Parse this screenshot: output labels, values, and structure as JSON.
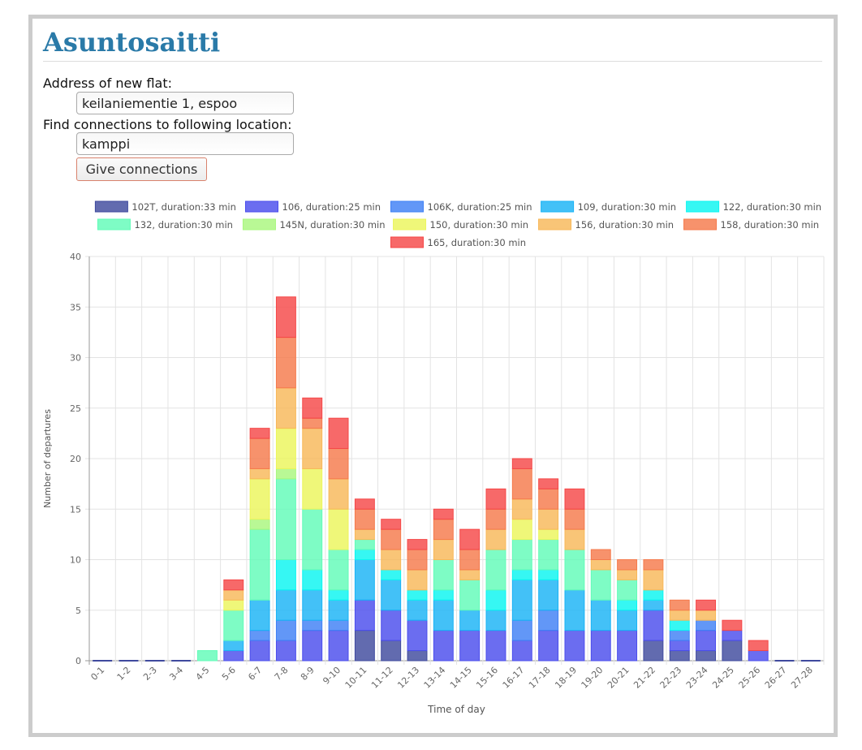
{
  "app": {
    "title": "Asuntosaitti"
  },
  "form": {
    "address_label": "Address of new flat:",
    "address_value": "keilaniementie 1, espoo",
    "destination_label": "Find connections to following location:",
    "destination_value": "kamppi",
    "submit_label": "Give connections"
  },
  "chart_data": {
    "type": "bar",
    "stacked": true,
    "xlabel": "Time of day",
    "ylabel": "Number of departures",
    "ylim": [
      0,
      40
    ],
    "yticks": [
      0,
      5,
      10,
      15,
      20,
      25,
      30,
      35,
      40
    ],
    "grid": true,
    "legend": "top",
    "categories": [
      "0-1",
      "1-2",
      "2-3",
      "3-4",
      "4-5",
      "5-6",
      "6-7",
      "7-8",
      "8-9",
      "9-10",
      "10-11",
      "11-12",
      "12-13",
      "13-14",
      "14-15",
      "15-16",
      "16-17",
      "17-18",
      "18-19",
      "19-20",
      "20-21",
      "21-22",
      "22-23",
      "23-24",
      "24-25",
      "25-26",
      "26-27",
      "27-28"
    ],
    "series": [
      {
        "name": "102T, duration:33 min",
        "color": "#3f4a9e",
        "values": [
          0,
          0,
          0,
          0,
          0,
          0,
          0,
          0,
          0,
          0,
          3,
          2,
          1,
          0,
          0,
          0,
          0,
          0,
          0,
          0,
          0,
          2,
          1,
          1,
          2,
          0,
          0,
          0
        ]
      },
      {
        "name": "106, duration:25 min",
        "color": "#4b4ded",
        "values": [
          0,
          0,
          0,
          0,
          0,
          1,
          2,
          2,
          3,
          3,
          3,
          3,
          3,
          3,
          3,
          3,
          2,
          3,
          3,
          3,
          3,
          3,
          1,
          2,
          1,
          1,
          0,
          0
        ]
      },
      {
        "name": "106K, duration:25 min",
        "color": "#3f80f5",
        "values": [
          0,
          0,
          0,
          0,
          0,
          0,
          1,
          2,
          1,
          1,
          0,
          0,
          0,
          0,
          0,
          0,
          2,
          2,
          0,
          0,
          0,
          0,
          1,
          1,
          0,
          0,
          0,
          0
        ]
      },
      {
        "name": "109, duration:30 min",
        "color": "#1ab3f5",
        "values": [
          0,
          0,
          0,
          0,
          0,
          1,
          3,
          3,
          3,
          2,
          4,
          3,
          2,
          3,
          2,
          2,
          4,
          3,
          4,
          3,
          2,
          1,
          0,
          0,
          0,
          0,
          0,
          0
        ]
      },
      {
        "name": "122, duration:30 min",
        "color": "#0af5f0",
        "values": [
          0,
          0,
          0,
          0,
          0,
          0,
          0,
          3,
          2,
          1,
          1,
          1,
          1,
          1,
          0,
          2,
          1,
          1,
          0,
          0,
          1,
          1,
          1,
          0,
          0,
          0,
          0,
          0
        ]
      },
      {
        "name": "132, duration:30 min",
        "color": "#62fbb8",
        "values": [
          0,
          0,
          0,
          0,
          1,
          3,
          7,
          8,
          6,
          4,
          1,
          0,
          0,
          3,
          3,
          4,
          3,
          3,
          4,
          3,
          2,
          0,
          0,
          0,
          0,
          0,
          0,
          0
        ]
      },
      {
        "name": "145N, duration:30 min",
        "color": "#a9f77e",
        "values": [
          0,
          0,
          0,
          0,
          0,
          0,
          1,
          1,
          0,
          0,
          0,
          0,
          0,
          0,
          0,
          0,
          0,
          0,
          0,
          0,
          0,
          0,
          0,
          0,
          0,
          0,
          0,
          0
        ]
      },
      {
        "name": "150, duration:30 min",
        "color": "#ecf55c",
        "values": [
          0,
          0,
          0,
          0,
          0,
          1,
          4,
          4,
          4,
          4,
          0,
          0,
          0,
          0,
          0,
          0,
          2,
          1,
          0,
          0,
          0,
          0,
          0,
          0,
          0,
          0,
          0,
          0
        ]
      },
      {
        "name": "156, duration:30 min",
        "color": "#f8b859",
        "values": [
          0,
          0,
          0,
          0,
          0,
          1,
          1,
          4,
          4,
          3,
          1,
          2,
          2,
          2,
          1,
          2,
          2,
          2,
          2,
          1,
          1,
          2,
          1,
          1,
          0,
          0,
          0,
          0
        ]
      },
      {
        "name": "158, duration:30 min",
        "color": "#f57a4c",
        "values": [
          0,
          0,
          0,
          0,
          0,
          0,
          3,
          5,
          1,
          3,
          2,
          2,
          2,
          2,
          2,
          2,
          3,
          2,
          2,
          1,
          1,
          1,
          1,
          0,
          0,
          0,
          0,
          0
        ]
      },
      {
        "name": "165, duration:30 min",
        "color": "#f54848",
        "values": [
          0,
          0,
          0,
          0,
          0,
          1,
          1,
          4,
          2,
          3,
          1,
          1,
          1,
          1,
          2,
          2,
          1,
          1,
          2,
          0,
          0,
          0,
          0,
          1,
          1,
          1,
          0,
          0
        ]
      }
    ]
  }
}
